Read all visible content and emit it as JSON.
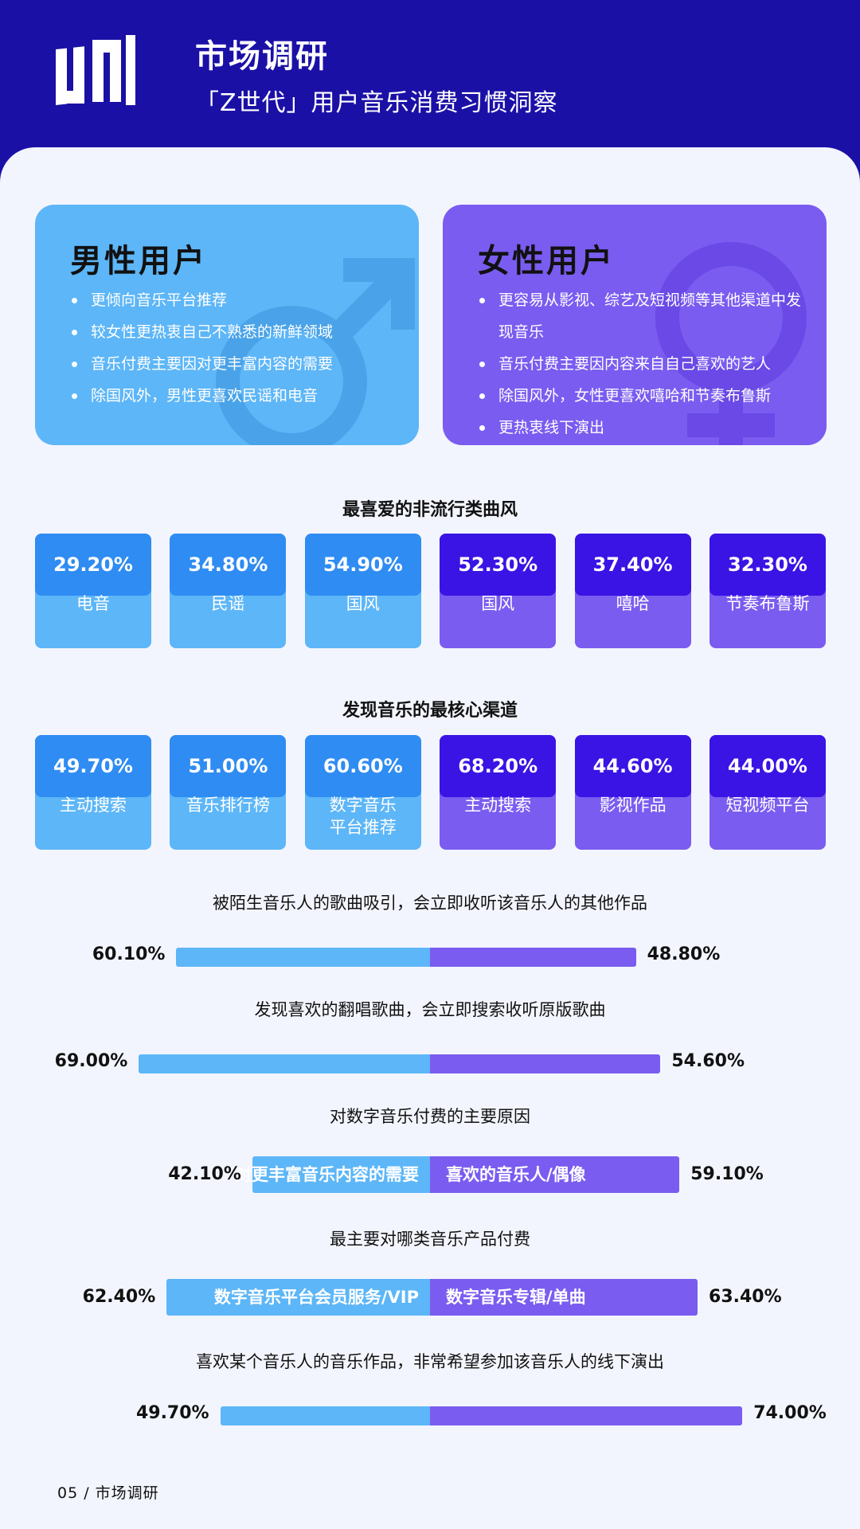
{
  "header": {
    "title": "市场调研",
    "subtitle": "「Z世代」用户音乐消费习惯洞察"
  },
  "male": {
    "title": "男性用户",
    "points": [
      "更倾向音乐平台推荐",
      "较女性更热衷自己不熟悉的新鲜领域",
      "音乐付费主要因对更丰富内容的需要",
      "除国风外，男性更喜欢民谣和电音"
    ]
  },
  "female": {
    "title": "女性用户",
    "points": [
      "更容易从影视、综艺及短视频等其他渠道中发现音乐",
      "音乐付费主要因内容来自自己喜欢的艺人",
      "除国风外，女性更喜欢嘻哈和节奏布鲁斯",
      "更热衷线下演出"
    ]
  },
  "genres": {
    "title": "最喜爱的非流行类曲风",
    "tiles": [
      {
        "pct": "29.20%",
        "label": "电音",
        "group": "male"
      },
      {
        "pct": "34.80%",
        "label": "民谣",
        "group": "male"
      },
      {
        "pct": "54.90%",
        "label": "国风",
        "group": "male"
      },
      {
        "pct": "52.30%",
        "label": "国风",
        "group": "female"
      },
      {
        "pct": "37.40%",
        "label": "嘻哈",
        "group": "female"
      },
      {
        "pct": "32.30%",
        "label": "节奏布鲁斯",
        "group": "female"
      }
    ]
  },
  "channels": {
    "title": "发现音乐的最核心渠道",
    "tiles": [
      {
        "pct": "49.70%",
        "label": "主动搜索",
        "group": "male"
      },
      {
        "pct": "51.00%",
        "label": "音乐排行榜",
        "group": "male"
      },
      {
        "pct": "60.60%",
        "label": "数字音乐\n平台推荐",
        "group": "male"
      },
      {
        "pct": "68.20%",
        "label": "主动搜索",
        "group": "female"
      },
      {
        "pct": "44.60%",
        "label": "影视作品",
        "group": "female"
      },
      {
        "pct": "44.00%",
        "label": "短视频平台",
        "group": "female"
      }
    ]
  },
  "bars": [
    {
      "question": "被陌生音乐人的歌曲吸引，会立即收听该音乐人的其他作品",
      "male_pct": "60.10%",
      "female_pct": "48.80%",
      "male_value": 60.1,
      "female_value": 48.8,
      "male_text": "",
      "female_text": ""
    },
    {
      "question": "发现喜欢的翻唱歌曲，会立即搜索收听原版歌曲",
      "male_pct": "69.00%",
      "female_pct": "54.60%",
      "male_value": 69.0,
      "female_value": 54.6,
      "male_text": "",
      "female_text": ""
    },
    {
      "question": "对数字音乐付费的主要原因",
      "male_pct": "42.10%",
      "female_pct": "59.10%",
      "male_value": 42.1,
      "female_value": 59.1,
      "male_text": "对更丰富音乐内容的需要",
      "female_text": "喜欢的音乐人/偶像"
    },
    {
      "question": "最主要对哪类音乐产品付费",
      "male_pct": "62.40%",
      "female_pct": "63.40%",
      "male_value": 62.4,
      "female_value": 63.4,
      "male_text": "数字音乐平台会员服务/VIP",
      "female_text": "数字音乐专辑/单曲"
    },
    {
      "question": "喜欢某个音乐人的音乐作品，非常希望参加该音乐人的线下演出",
      "male_pct": "49.70%",
      "female_pct": "74.00%",
      "male_value": 49.7,
      "female_value": 74.0,
      "male_text": "",
      "female_text": ""
    }
  ],
  "footer": {
    "text": "05 / 市场调研"
  },
  "colors": {
    "header_bg": "#1b10a6",
    "male_light": "#5db6f7",
    "male_dark": "#2f8cf2",
    "female_light": "#7a5cf0",
    "female_dark": "#3a14e4",
    "panel_bg": "#f3f5fe"
  },
  "icons": {
    "logo": "uni-logo",
    "male_symbol": "male-symbol-icon",
    "female_symbol": "female-symbol-icon"
  }
}
